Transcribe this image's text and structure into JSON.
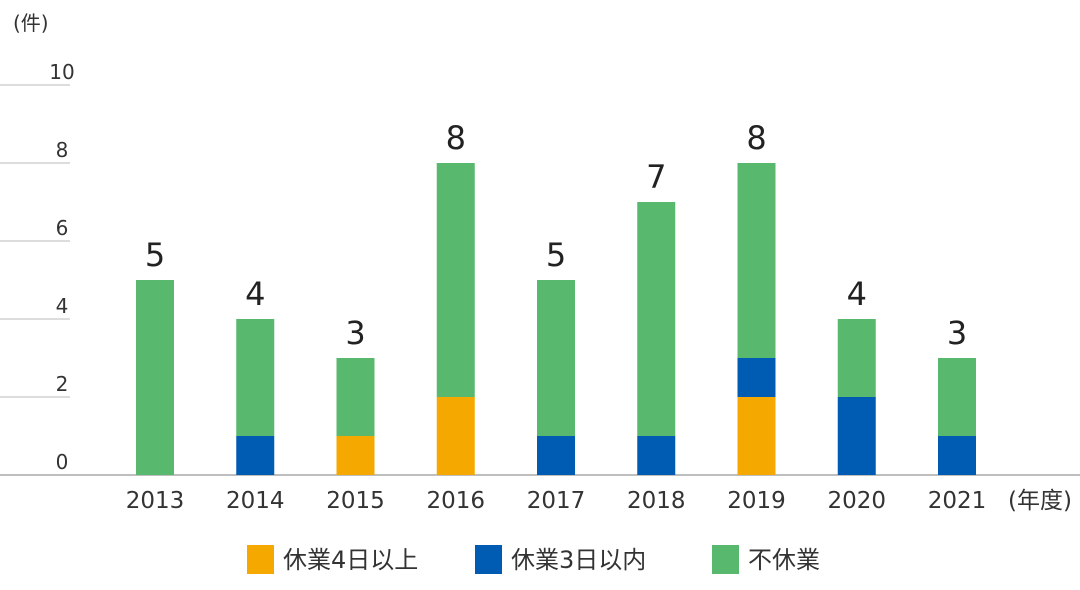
{
  "chart_data": {
    "type": "bar",
    "stacked": true,
    "y_unit": "(件)",
    "x_unit": "(年度)",
    "ylim": [
      0,
      10
    ],
    "yticks": [
      0,
      2,
      4,
      6,
      8,
      10
    ],
    "grid": true,
    "legend_position": "bottom",
    "categories": [
      "2013",
      "2014",
      "2015",
      "2016",
      "2017",
      "2018",
      "2019",
      "2020",
      "2021"
    ],
    "series": [
      {
        "name": "休業4日以上",
        "color": "#f5a800",
        "values": [
          0,
          0,
          1,
          2,
          0,
          0,
          2,
          0,
          0
        ]
      },
      {
        "name": "休業3日以内",
        "color": "#005cb3",
        "values": [
          0,
          1,
          0,
          0,
          1,
          1,
          1,
          2,
          1
        ]
      },
      {
        "name": "不休業",
        "color": "#58b86e",
        "values": [
          5,
          3,
          2,
          6,
          4,
          6,
          5,
          2,
          2
        ]
      }
    ],
    "totals": [
      5,
      4,
      3,
      8,
      5,
      7,
      8,
      4,
      3
    ]
  }
}
